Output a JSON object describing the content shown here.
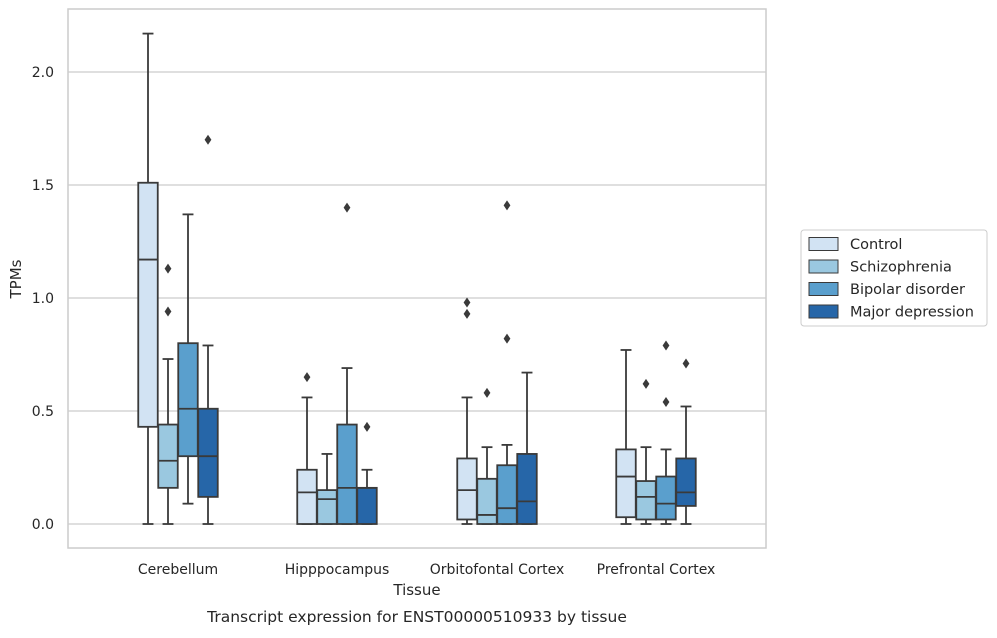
{
  "chart_data": {
    "type": "box",
    "title": "",
    "xlabel": "Tissue",
    "ylabel": "TPMs",
    "caption": "Transcript expression for ENST00000510933 by tissue",
    "categories": [
      "Cerebellum",
      "Hipppocampus",
      "Orbitofontal Cortex",
      "Prefrontal Cortex"
    ],
    "ylim": [
      -0.1,
      2.28
    ],
    "yticks": [
      "0.0",
      "0.5",
      "1.0",
      "1.5",
      "2.0"
    ],
    "ytick_values": [
      0,
      0.5,
      1.0,
      1.5,
      2.0
    ],
    "grid": "horizontal",
    "legend_position": "right",
    "series": [
      {
        "name": "Control",
        "color": "#d2e3f3",
        "boxes": [
          {
            "q1": 0.43,
            "median": 1.17,
            "q3": 1.51,
            "whisker_low": 0.0,
            "whisker_high": 2.17,
            "outliers": []
          },
          {
            "q1": 0.0,
            "median": 0.14,
            "q3": 0.24,
            "whisker_low": 0.0,
            "whisker_high": 0.56,
            "outliers": [
              0.65
            ]
          },
          {
            "q1": 0.02,
            "median": 0.15,
            "q3": 0.29,
            "whisker_low": 0.0,
            "whisker_high": 0.56,
            "outliers": [
              0.93,
              0.98
            ]
          },
          {
            "q1": 0.03,
            "median": 0.21,
            "q3": 0.33,
            "whisker_low": 0.0,
            "whisker_high": 0.77,
            "outliers": []
          }
        ]
      },
      {
        "name": "Schizophrenia",
        "color": "#9ac8e0",
        "boxes": [
          {
            "q1": 0.16,
            "median": 0.28,
            "q3": 0.44,
            "whisker_low": 0.0,
            "whisker_high": 0.73,
            "outliers": [
              0.94,
              1.13
            ]
          },
          {
            "q1": 0.0,
            "median": 0.11,
            "q3": 0.15,
            "whisker_low": 0.0,
            "whisker_high": 0.31,
            "outliers": []
          },
          {
            "q1": 0.0,
            "median": 0.04,
            "q3": 0.2,
            "whisker_low": 0.0,
            "whisker_high": 0.34,
            "outliers": [
              0.58
            ]
          },
          {
            "q1": 0.02,
            "median": 0.12,
            "q3": 0.19,
            "whisker_low": 0.0,
            "whisker_high": 0.34,
            "outliers": [
              0.62
            ]
          }
        ]
      },
      {
        "name": "Bipolar disorder",
        "color": "#5a9fcd",
        "boxes": [
          {
            "q1": 0.3,
            "median": 0.51,
            "q3": 0.8,
            "whisker_low": 0.09,
            "whisker_high": 1.37,
            "outliers": []
          },
          {
            "q1": 0.0,
            "median": 0.16,
            "q3": 0.44,
            "whisker_low": 0.0,
            "whisker_high": 0.69,
            "outliers": [
              1.4
            ]
          },
          {
            "q1": 0.0,
            "median": 0.07,
            "q3": 0.26,
            "whisker_low": 0.0,
            "whisker_high": 0.35,
            "outliers": [
              0.82,
              1.41
            ]
          },
          {
            "q1": 0.02,
            "median": 0.09,
            "q3": 0.21,
            "whisker_low": 0.0,
            "whisker_high": 0.33,
            "outliers": [
              0.54,
              0.79
            ]
          }
        ]
      },
      {
        "name": "Major depression",
        "color": "#2666a8",
        "boxes": [
          {
            "q1": 0.12,
            "median": 0.3,
            "q3": 0.51,
            "whisker_low": 0.0,
            "whisker_high": 0.79,
            "outliers": [
              1.7
            ]
          },
          {
            "q1": 0.0,
            "median": 0.16,
            "q3": 0.16,
            "whisker_low": 0.0,
            "whisker_high": 0.24,
            "outliers": [
              0.43
            ]
          },
          {
            "q1": 0.0,
            "median": 0.1,
            "q3": 0.31,
            "whisker_low": 0.0,
            "whisker_high": 0.67,
            "outliers": []
          },
          {
            "q1": 0.08,
            "median": 0.14,
            "q3": 0.29,
            "whisker_low": 0.0,
            "whisker_high": 0.52,
            "outliers": [
              0.71
            ]
          }
        ]
      }
    ],
    "colors": {
      "grid": "#cccccc",
      "frame": "#cccccc",
      "box_edge": "#3a3a3a",
      "background": "#ffffff"
    }
  }
}
